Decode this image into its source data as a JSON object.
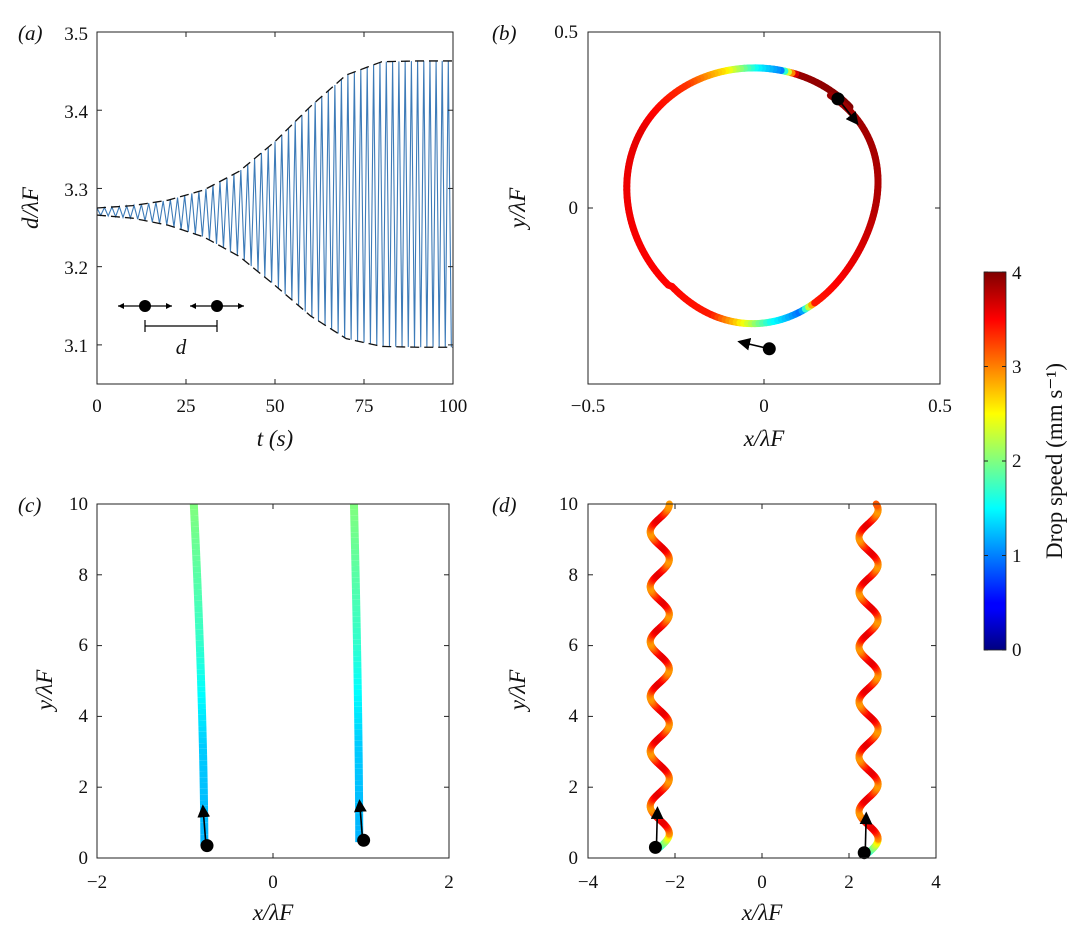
{
  "panels": {
    "a": {
      "label": "(a)",
      "xlabel": "t (s)",
      "ylabel": "d/λF",
      "xticks": [
        "0",
        "25",
        "50",
        "75",
        "100"
      ],
      "yticks": [
        "3.1",
        "3.2",
        "3.3",
        "3.4",
        "3.5"
      ],
      "inset_label": "d"
    },
    "b": {
      "label": "(b)",
      "xlabel": "x/λF",
      "ylabel": "y/λF",
      "xticks": [
        "−0.5",
        "0",
        "0.5"
      ],
      "yticks": [
        "0",
        "0.5"
      ]
    },
    "c": {
      "label": "(c)",
      "xlabel": "x/λF",
      "ylabel": "y/λF",
      "xticks": [
        "−2",
        "0",
        "2"
      ],
      "yticks": [
        "0",
        "2",
        "4",
        "6",
        "8",
        "10"
      ]
    },
    "d": {
      "label": "(d)",
      "xlabel": "x/λF",
      "ylabel": "y/λF",
      "xticks": [
        "−4",
        "−2",
        "0",
        "2",
        "4"
      ],
      "yticks": [
        "0",
        "2",
        "4",
        "6",
        "8",
        "10"
      ]
    }
  },
  "colorbar": {
    "label": "Drop speed (mm s⁻¹)",
    "ticks": [
      "0",
      "1",
      "2",
      "3",
      "4"
    ],
    "range": [
      0,
      4
    ],
    "colormap": "jet"
  },
  "chart_data": [
    {
      "panel": "a",
      "type": "line",
      "xlim": [
        0,
        100
      ],
      "ylim": [
        3.05,
        3.5
      ],
      "series": [
        {
          "style": "oscillation",
          "color": "#3d7bb8",
          "x": [
            0,
            10,
            20,
            30,
            40,
            50,
            60,
            70,
            80,
            90,
            100
          ],
          "upper": [
            3.275,
            3.278,
            3.285,
            3.298,
            3.322,
            3.36,
            3.405,
            3.445,
            3.462,
            3.463,
            3.463
          ],
          "lower": [
            3.266,
            3.262,
            3.253,
            3.238,
            3.213,
            3.176,
            3.137,
            3.108,
            3.098,
            3.097,
            3.097
          ]
        },
        {
          "style": "envelope",
          "color": "#111111",
          "x": [
            0,
            10,
            20,
            30,
            40,
            50,
            60,
            70,
            80,
            90,
            100
          ],
          "upper": [
            3.275,
            3.278,
            3.285,
            3.298,
            3.322,
            3.36,
            3.405,
            3.445,
            3.462,
            3.463,
            3.463
          ],
          "lower": [
            3.266,
            3.262,
            3.253,
            3.238,
            3.213,
            3.176,
            3.137,
            3.108,
            3.098,
            3.097,
            3.097
          ]
        }
      ]
    },
    {
      "panel": "b",
      "type": "line",
      "xlim": [
        -0.5,
        0.5
      ],
      "ylim": [
        -0.5,
        0.5
      ],
      "orbit": {
        "cx": -0.03,
        "cy": 0.04,
        "r": 0.365,
        "start_deg": 42,
        "end_deg": 268
      },
      "drops": [
        {
          "x": 0.21,
          "y": 0.31,
          "dir": [
            0.55,
            -0.7
          ]
        },
        {
          "x": 0.015,
          "y": -0.4,
          "dir": [
            -0.85,
            0.2
          ]
        }
      ],
      "speed": [
        {
          "s": 0,
          "v": 4.0
        },
        {
          "s": 0.08,
          "v": 3.9
        },
        {
          "s": 0.1,
          "v": 1.0
        },
        {
          "s": 0.13,
          "v": 1.5
        },
        {
          "s": 0.17,
          "v": 2.6
        },
        {
          "s": 0.22,
          "v": 3.3
        },
        {
          "s": 0.3,
          "v": 3.6
        },
        {
          "s": 0.5,
          "v": 3.5
        },
        {
          "s": 0.57,
          "v": 3.4
        },
        {
          "s": 0.6,
          "v": 2.7
        },
        {
          "s": 0.64,
          "v": 1.6
        },
        {
          "s": 0.68,
          "v": 0.9
        },
        {
          "s": 0.7,
          "v": 3.4
        },
        {
          "s": 0.85,
          "v": 3.8
        },
        {
          "s": 1.0,
          "v": 3.9
        }
      ]
    },
    {
      "panel": "c",
      "type": "line",
      "xlim": [
        -2,
        2
      ],
      "ylim": [
        0,
        10
      ],
      "tracks": [
        {
          "x0": -0.78,
          "x1": -0.9,
          "y0": 0.35,
          "y1": 10
        },
        {
          "x0": 0.98,
          "x1": 0.92,
          "y0": 0.45,
          "y1": 10
        }
      ],
      "drops": [
        {
          "x": -0.75,
          "y": 0.35
        },
        {
          "x": 1.03,
          "y": 0.5
        }
      ],
      "speed": [
        {
          "s": 0,
          "v": 1.2
        },
        {
          "s": 0.3,
          "v": 1.3
        },
        {
          "s": 0.6,
          "v": 1.7
        },
        {
          "s": 1.0,
          "v": 2.0
        }
      ]
    },
    {
      "panel": "d",
      "type": "line",
      "xlim": [
        -4,
        4
      ],
      "ylim": [
        0,
        10
      ],
      "tracks": [
        {
          "xc": -2.35,
          "amp": 0.22,
          "wavelength": 1.55,
          "y0": 0.3,
          "y1": 10
        },
        {
          "xc": 2.45,
          "amp": 0.22,
          "wavelength": 1.55,
          "y0": 0.15,
          "y1": 10
        }
      ],
      "drops": [
        {
          "x": -2.45,
          "y": 0.3
        },
        {
          "x": 2.35,
          "y": 0.15
        }
      ],
      "speed_low": 2.9,
      "speed_high": 3.6
    }
  ]
}
